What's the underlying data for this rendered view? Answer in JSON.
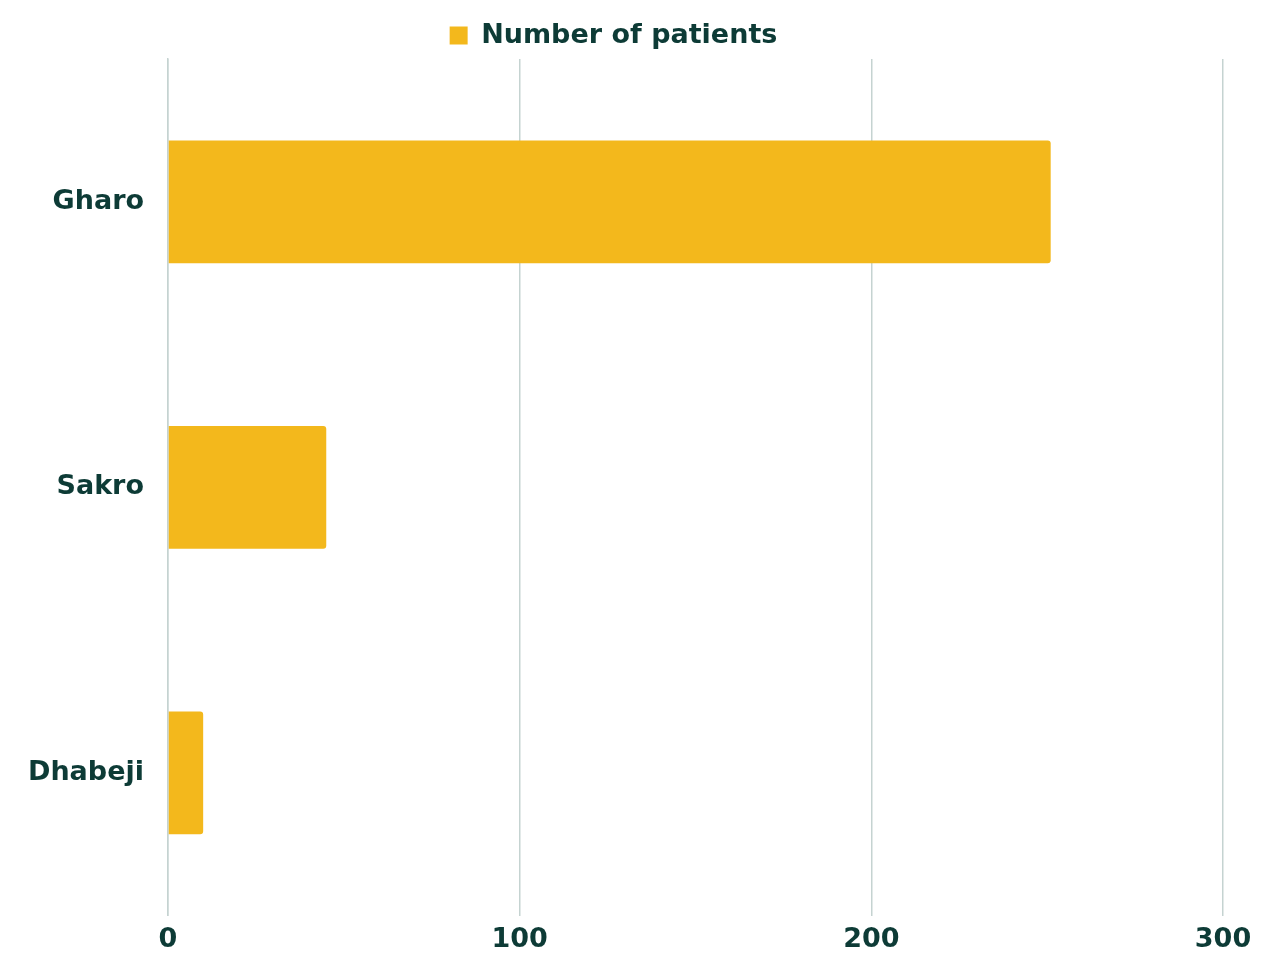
{
  "chart_data": {
    "type": "bar",
    "orientation": "horizontal",
    "categories": [
      "Gharo",
      "Sakro",
      "Dhabeji"
    ],
    "series": [
      {
        "name": "Number of patients",
        "color": "#f3b81c",
        "values": [
          251,
          45,
          10
        ]
      }
    ],
    "xlim": [
      0,
      300
    ],
    "xticks": [
      0,
      100,
      200,
      300
    ],
    "grid": "x",
    "legend": "top"
  }
}
